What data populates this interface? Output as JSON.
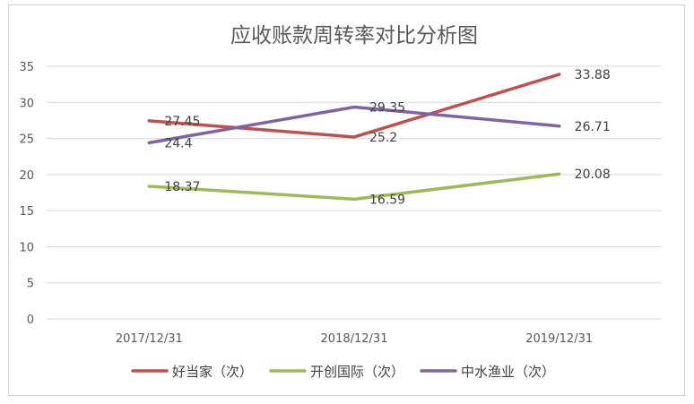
{
  "chart_data": {
    "type": "line",
    "title": "应收账款周转率对比分析图",
    "categories": [
      "2017/12/31",
      "2018/12/31",
      "2019/12/31"
    ],
    "y_ticks": [
      "0",
      "5",
      "10",
      "15",
      "20",
      "25",
      "30",
      "35"
    ],
    "ylim": [
      0,
      35
    ],
    "grid": true,
    "legend_position": "bottom",
    "series": [
      {
        "name": "好当家（次）",
        "color": "#c0504d",
        "values": [
          27.45,
          25.2,
          33.88
        ],
        "labels": [
          "27.45",
          "25.2",
          "33.88"
        ]
      },
      {
        "name": "开创国际（次）",
        "color": "#9bbb59",
        "values": [
          18.37,
          16.59,
          20.08
        ],
        "labels": [
          "18.37",
          "16.59",
          "20.08"
        ]
      },
      {
        "name": "中水渔业（次）",
        "color": "#8064a2",
        "values": [
          24.4,
          29.35,
          26.71
        ],
        "labels": [
          "24.4",
          "29.35",
          "26.71"
        ]
      }
    ]
  }
}
